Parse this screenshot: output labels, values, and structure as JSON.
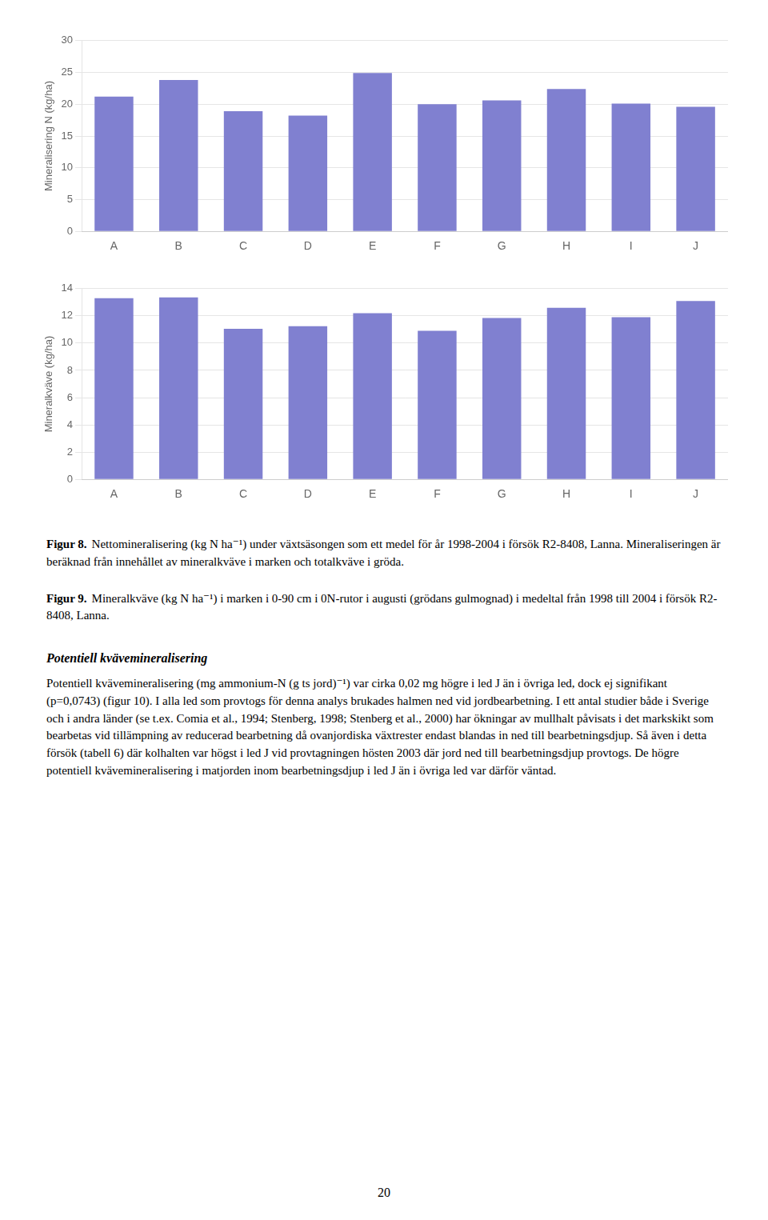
{
  "chart_data": [
    {
      "type": "bar",
      "categories": [
        "A",
        "B",
        "C",
        "D",
        "E",
        "F",
        "G",
        "H",
        "I",
        "J"
      ],
      "values": [
        21.2,
        23.8,
        18.9,
        18.2,
        24.9,
        20.0,
        20.6,
        22.4,
        20.1,
        19.6
      ],
      "ylabel": "Mineralisering N (kg/ha)",
      "ylim": [
        0,
        30
      ],
      "yticks": [
        0,
        5,
        10,
        15,
        20,
        25,
        30
      ],
      "color": "#8080d0",
      "grid": true
    },
    {
      "type": "bar",
      "categories": [
        "A",
        "B",
        "C",
        "D",
        "E",
        "F",
        "G",
        "H",
        "I",
        "J"
      ],
      "values": [
        13.3,
        13.35,
        11.05,
        11.25,
        12.2,
        10.9,
        11.85,
        12.6,
        11.9,
        13.1
      ],
      "ylabel": "Mineralkväve (kg/ha)",
      "ylim": [
        0,
        14
      ],
      "yticks": [
        0,
        2,
        4,
        6,
        8,
        10,
        12,
        14
      ],
      "color": "#8080d0",
      "grid": true
    }
  ],
  "captions": [
    {
      "label": "Figur 8.",
      "text": "Nettomineralisering (kg N ha⁻¹) under växtsäsongen som ett medel för år 1998-2004 i försök R2-8408, Lanna. Mineraliseringen är beräknad från innehållet av mineralkväve i marken och totalkväve i gröda."
    },
    {
      "label": "Figur 9.",
      "text": "Mineralkväve (kg N ha⁻¹) i marken i 0-90 cm i 0N-rutor i augusti (grödans gulmognad) i medeltal från 1998 till 2004 i försök R2-8408, Lanna."
    }
  ],
  "section": {
    "heading": "Potentiell kvävemineralisering",
    "text": "Potentiell kvävemineralisering (mg ammonium-N (g ts jord)⁻¹) var cirka 0,02 mg högre i led J än i övriga led, dock ej signifikant (p=0,0743) (figur 10). I alla led som provtogs för denna analys brukades halmen ned vid jordbearbetning. I ett antal studier både i Sverige och i andra länder (se t.ex. Comia et al., 1994; Stenberg, 1998; Stenberg et al., 2000) har ökningar av mullhalt påvisats i det markskikt som bearbetas vid tillämpning av reducerad bearbetning då ovanjordiska växtrester endast blandas in ned till bearbetningsdjup. Så även i detta försök (tabell 6) där kolhalten var högst i led J vid provtagningen hösten 2003 där jord ned till bearbetningsdjup provtogs. De högre potentiell kvävemineralisering i matjorden inom bearbetningsdjup i led J än i övriga led var därför väntad."
  },
  "page_number": "20"
}
